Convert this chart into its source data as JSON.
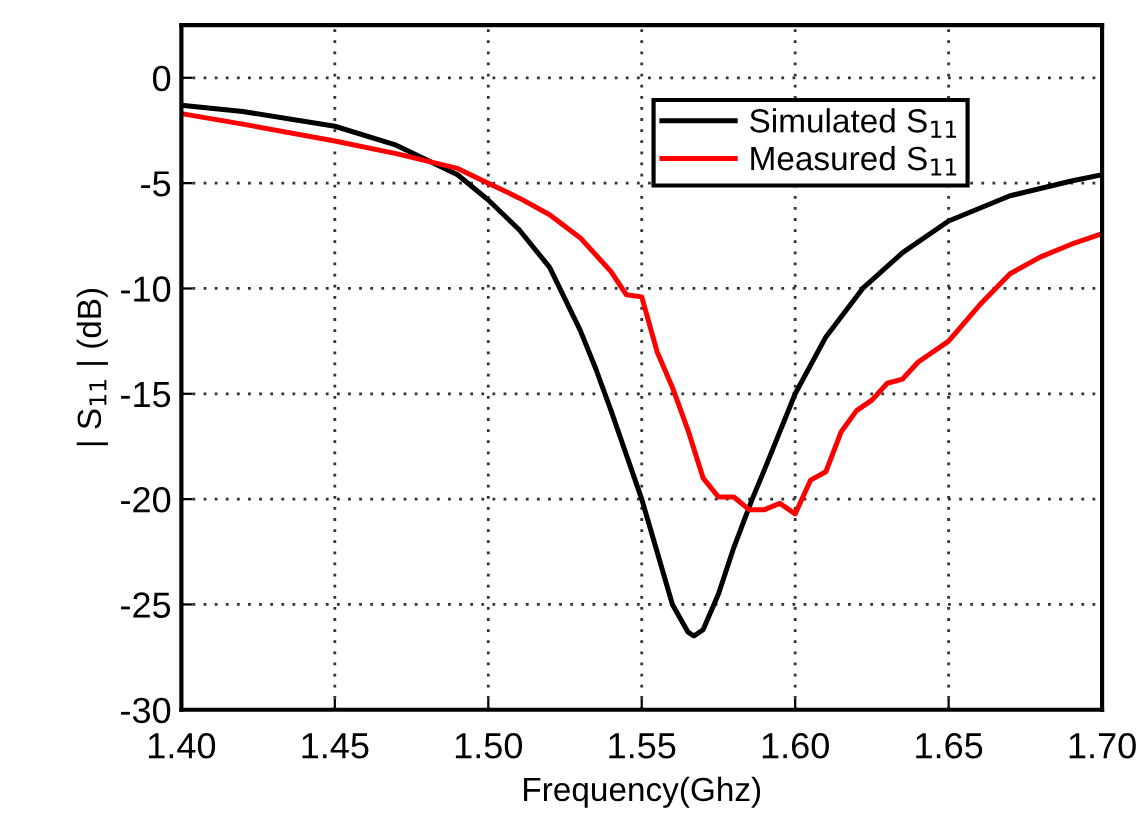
{
  "chart_data": {
    "type": "line",
    "xlabel": "Frequency(Ghz)",
    "ylabel": "| S$_{11}$ | (dB)",
    "xlim": [
      1.4,
      1.7
    ],
    "ylim": [
      -30,
      2.5
    ],
    "xticks": [
      {
        "value": 1.4,
        "label": "1.40"
      },
      {
        "value": 1.45,
        "label": "1.45"
      },
      {
        "value": 1.5,
        "label": "1.50"
      },
      {
        "value": 1.55,
        "label": "1.55"
      },
      {
        "value": 1.6,
        "label": "1.60"
      },
      {
        "value": 1.65,
        "label": "1.65"
      },
      {
        "value": 1.7,
        "label": "1.70"
      }
    ],
    "yticks": [
      -30,
      -25,
      -20,
      -15,
      -10,
      -5,
      0
    ],
    "grid": true,
    "legend": "top right",
    "line_style": "solid",
    "series": [
      {
        "name": "Simulated S$_{11}$",
        "color": "#000000",
        "x": [
          1.4,
          1.42,
          1.45,
          1.47,
          1.49,
          1.5,
          1.51,
          1.52,
          1.53,
          1.535,
          1.54,
          1.545,
          1.55,
          1.555,
          1.56,
          1.565,
          1.567,
          1.57,
          1.575,
          1.58,
          1.586,
          1.59,
          1.6,
          1.61,
          1.622,
          1.635,
          1.65,
          1.67,
          1.69,
          1.7
        ],
        "values": [
          -1.3,
          -1.6,
          -2.3,
          -3.2,
          -4.6,
          -5.8,
          -7.2,
          -9.0,
          -12.0,
          -13.8,
          -15.8,
          -17.9,
          -20.0,
          -22.5,
          -25.0,
          -26.3,
          -26.5,
          -26.2,
          -24.5,
          -22.3,
          -20.0,
          -18.6,
          -15.0,
          -12.3,
          -10.0,
          -8.3,
          -6.8,
          -5.6,
          -4.9,
          -4.6
        ]
      },
      {
        "name": "Measured S$_{11}$",
        "color": "#ff0000",
        "x": [
          1.4,
          1.42,
          1.45,
          1.47,
          1.49,
          1.5,
          1.51,
          1.52,
          1.53,
          1.54,
          1.545,
          1.55,
          1.555,
          1.56,
          1.565,
          1.57,
          1.575,
          1.58,
          1.585,
          1.59,
          1.595,
          1.6,
          1.605,
          1.61,
          1.615,
          1.62,
          1.625,
          1.63,
          1.635,
          1.64,
          1.65,
          1.66,
          1.67,
          1.68,
          1.69,
          1.7
        ],
        "values": [
          -1.7,
          -2.2,
          -3.0,
          -3.6,
          -4.3,
          -5.0,
          -5.7,
          -6.5,
          -7.6,
          -9.2,
          -10.3,
          -10.4,
          -13.0,
          -14.7,
          -16.7,
          -19.0,
          -19.9,
          -19.9,
          -20.5,
          -20.5,
          -20.2,
          -20.7,
          -19.1,
          -18.7,
          -16.8,
          -15.8,
          -15.3,
          -14.5,
          -14.3,
          -13.5,
          -12.5,
          -10.8,
          -9.3,
          -8.5,
          -7.9,
          -7.4
        ]
      }
    ]
  }
}
